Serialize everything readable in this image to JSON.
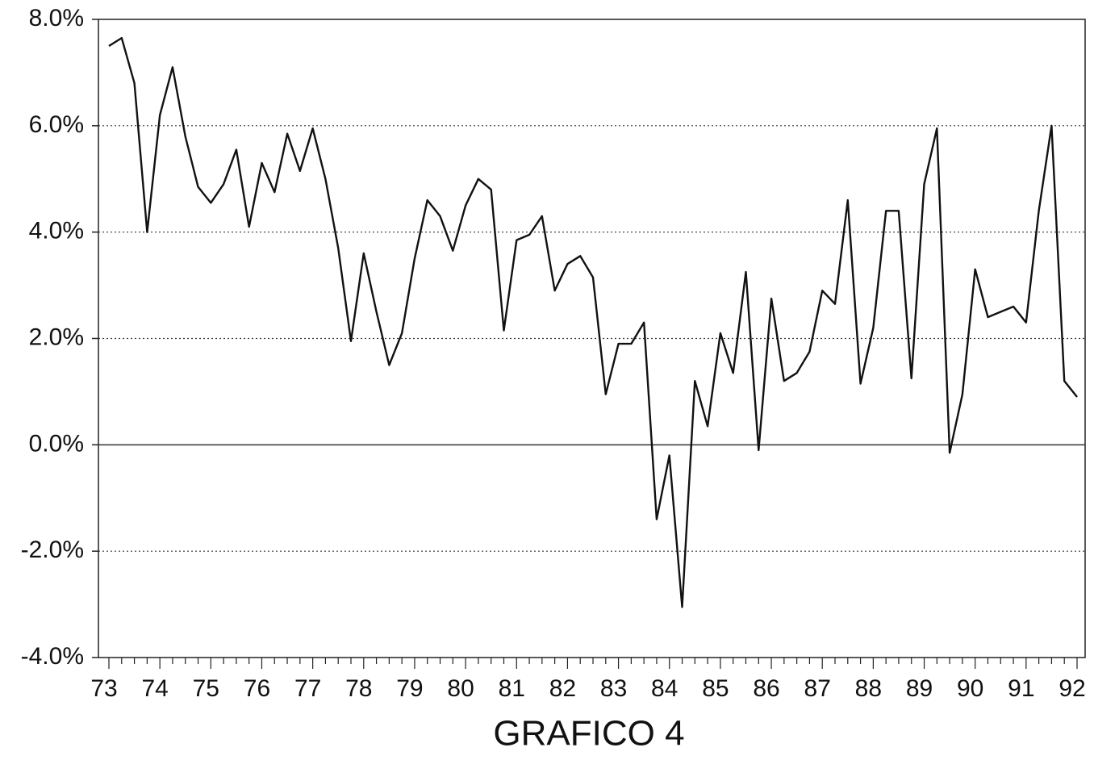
{
  "chart_data": {
    "type": "line",
    "title": "GRAFICO 4",
    "categories": [
      "73",
      null,
      null,
      null,
      "74",
      null,
      null,
      null,
      "75",
      null,
      null,
      null,
      "76",
      null,
      null,
      null,
      "77",
      null,
      null,
      null,
      "78",
      null,
      null,
      null,
      "79",
      null,
      null,
      null,
      "80",
      null,
      null,
      null,
      "81",
      null,
      null,
      null,
      "82",
      null,
      null,
      null,
      "83",
      null,
      null,
      null,
      "84",
      null,
      null,
      null,
      "85",
      null,
      null,
      null,
      "86",
      null,
      null,
      null,
      "87",
      null,
      null,
      null,
      "88",
      null,
      null,
      null,
      "89",
      null,
      null,
      null,
      "90",
      null,
      null,
      null,
      "91",
      null,
      null,
      null,
      "92"
    ],
    "values": [
      7.5,
      7.65,
      6.8,
      4.0,
      6.2,
      7.1,
      5.8,
      4.85,
      4.55,
      4.9,
      5.55,
      4.1,
      5.3,
      4.75,
      5.85,
      5.15,
      5.95,
      5.0,
      3.7,
      1.95,
      3.6,
      2.5,
      1.5,
      2.1,
      3.5,
      4.6,
      4.3,
      3.65,
      4.5,
      5.0,
      4.8,
      2.15,
      3.85,
      3.95,
      4.3,
      2.9,
      3.4,
      3.55,
      3.15,
      0.95,
      1.9,
      1.9,
      2.3,
      -1.4,
      -0.2,
      -3.05,
      1.2,
      0.35,
      2.1,
      1.35,
      3.25,
      -0.1,
      2.75,
      1.2,
      1.35,
      1.75,
      2.9,
      2.65,
      4.6,
      1.15,
      2.2,
      4.4,
      4.4,
      1.25,
      4.9,
      5.95,
      -0.15,
      0.95,
      3.3,
      2.4,
      2.5,
      2.6,
      2.3,
      4.4,
      6.0,
      1.2,
      0.9
    ],
    "color": "#111111",
    "ylim": [
      -4,
      8
    ],
    "yticks": [
      {
        "value": -4,
        "label": "-4.0%"
      },
      {
        "value": -2,
        "label": "-2.0%"
      },
      {
        "value": 0,
        "label": "0.0%"
      },
      {
        "value": 2,
        "label": "2.0%"
      },
      {
        "value": 4,
        "label": "4.0%"
      },
      {
        "value": 6,
        "label": "6.0%"
      },
      {
        "value": 8,
        "label": "8.0%"
      }
    ],
    "grid": true
  }
}
